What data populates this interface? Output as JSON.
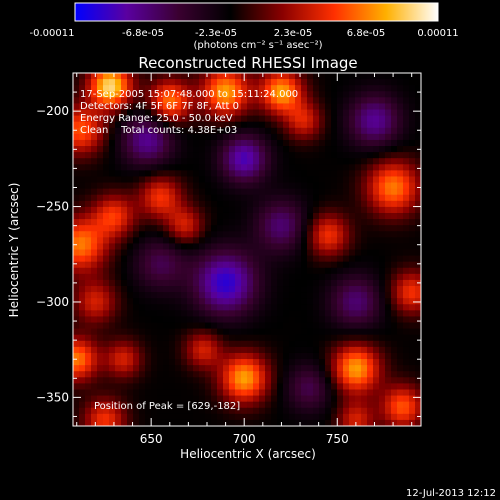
{
  "colorbar": {
    "stops": [
      "#0000ff",
      "#5a00a0",
      "#3a0030",
      "#000000",
      "#8a0000",
      "#ff3000",
      "#ffb000",
      "#ffffff"
    ],
    "ticks": [
      "-0.00011",
      "-6.8e-05",
      "-2.3e-05",
      "2.3e-05",
      "6.8e-05",
      "0.00011"
    ],
    "unit_label": "(photons cm⁻² s⁻¹ asec⁻²)"
  },
  "chart_data": {
    "type": "heatmap",
    "title": "Reconstructed RHESSI Image",
    "xlabel": "Heliocentric X (arcsec)",
    "ylabel": "Heliocentric Y (arcsec)",
    "xlim": [
      608,
      795
    ],
    "ylim": [
      -365,
      -180
    ],
    "xticks": [
      650,
      700,
      750
    ],
    "yticks": [
      -200,
      -250,
      -300,
      -350
    ],
    "xtick_labels": [
      "650",
      "700",
      "750"
    ],
    "ytick_labels": [
      "−200",
      "−250",
      "−300",
      "−350"
    ],
    "zlim": [
      -0.00011,
      0.00011
    ],
    "info_lines": [
      "17-Sep-2005 15:07:48.000 to 15:11:24.000",
      "Detectors: 4F 5F 6F 7F 8F, Att 0",
      "Energy Range: 25.0 - 50.0 keV",
      "Clean    Total counts: 4.38E+03"
    ],
    "peak_annotation": "Position of Peak = [629,-182]",
    "sources": [
      {
        "x": 628,
        "y": -187,
        "v": 0.00011,
        "s": 8
      },
      {
        "x": 612,
        "y": -210,
        "v": 7e-05,
        "s": 9
      },
      {
        "x": 612,
        "y": -270,
        "v": 8e-05,
        "s": 10
      },
      {
        "x": 630,
        "y": -255,
        "v": 6e-05,
        "s": 8
      },
      {
        "x": 648,
        "y": -215,
        "v": -6e-05,
        "s": 10
      },
      {
        "x": 660,
        "y": -195,
        "v": 8e-05,
        "s": 8
      },
      {
        "x": 655,
        "y": -245,
        "v": 6e-05,
        "s": 8
      },
      {
        "x": 668,
        "y": -260,
        "v": 5e-05,
        "s": 7
      },
      {
        "x": 690,
        "y": -190,
        "v": 9e-05,
        "s": 9
      },
      {
        "x": 700,
        "y": -225,
        "v": -7e-05,
        "s": 9
      },
      {
        "x": 720,
        "y": -190,
        "v": 9e-05,
        "s": 8
      },
      {
        "x": 732,
        "y": -205,
        "v": 5e-05,
        "s": 7
      },
      {
        "x": 770,
        "y": -205,
        "v": -6e-05,
        "s": 10
      },
      {
        "x": 780,
        "y": -240,
        "v": 8e-05,
        "s": 10
      },
      {
        "x": 745,
        "y": -265,
        "v": 6e-05,
        "s": 8
      },
      {
        "x": 760,
        "y": -300,
        "v": -5e-05,
        "s": 10
      },
      {
        "x": 790,
        "y": -295,
        "v": 6e-05,
        "s": 8
      },
      {
        "x": 620,
        "y": -300,
        "v": 5e-05,
        "s": 8
      },
      {
        "x": 610,
        "y": -330,
        "v": 8e-05,
        "s": 8
      },
      {
        "x": 635,
        "y": -330,
        "v": 5e-05,
        "s": 7
      },
      {
        "x": 655,
        "y": -280,
        "v": -4e-05,
        "s": 10
      },
      {
        "x": 690,
        "y": -290,
        "v": -8e-05,
        "s": 12
      },
      {
        "x": 720,
        "y": -260,
        "v": -5e-05,
        "s": 10
      },
      {
        "x": 700,
        "y": -340,
        "v": 9e-05,
        "s": 9
      },
      {
        "x": 678,
        "y": -325,
        "v": 5e-05,
        "s": 7
      },
      {
        "x": 735,
        "y": -345,
        "v": -4e-05,
        "s": 9
      },
      {
        "x": 760,
        "y": -335,
        "v": 9e-05,
        "s": 9
      },
      {
        "x": 785,
        "y": -355,
        "v": 7e-05,
        "s": 8
      },
      {
        "x": 625,
        "y": -362,
        "v": 6e-05,
        "s": 8
      },
      {
        "x": 760,
        "y": -362,
        "v": 5e-05,
        "s": 7
      }
    ]
  },
  "timestamp": "12-Jul-2013 12:12"
}
